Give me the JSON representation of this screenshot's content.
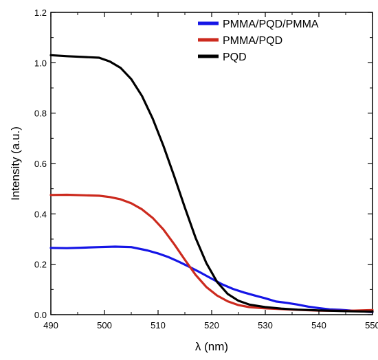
{
  "chart_data": {
    "type": "line",
    "title": "",
    "xlabel": "λ (nm)",
    "ylabel": "Intensity (a.u.)",
    "xlim": [
      490,
      550
    ],
    "ylim": [
      0,
      1.2
    ],
    "xticks": [
      490,
      500,
      510,
      520,
      530,
      540,
      550
    ],
    "yticks": [
      0.0,
      0.2,
      0.4,
      0.6,
      0.8,
      1.0,
      1.2
    ],
    "xtick_labels": [
      "490",
      "500",
      "510",
      "520",
      "530",
      "540",
      "550"
    ],
    "ytick_labels": [
      "0.0",
      "0.2",
      "0.4",
      "0.6",
      "0.8",
      "1.0",
      "1.2"
    ],
    "legend_position": "top-right",
    "series": [
      {
        "name": "PMMA/PQD/PMMA",
        "color": "#1515e6",
        "x": [
          490,
          493,
          496,
          499,
          502,
          505,
          508,
          510,
          512,
          514,
          516,
          518,
          520,
          522,
          524,
          526,
          528,
          530,
          532,
          534,
          536,
          538,
          540,
          542,
          544,
          546,
          548,
          550
        ],
        "y": [
          0.265,
          0.264,
          0.266,
          0.268,
          0.27,
          0.268,
          0.255,
          0.243,
          0.228,
          0.209,
          0.188,
          0.166,
          0.143,
          0.12,
          0.102,
          0.088,
          0.076,
          0.065,
          0.052,
          0.047,
          0.04,
          0.032,
          0.026,
          0.021,
          0.019,
          0.016,
          0.013,
          0.01
        ]
      },
      {
        "name": "PMMA/PQD",
        "color": "#cc2a1e",
        "x": [
          490,
          493,
          496,
          499,
          501,
          503,
          505,
          507,
          509,
          511,
          513,
          515,
          517,
          519,
          521,
          523,
          525,
          527,
          530,
          535,
          540,
          545,
          550
        ],
        "y": [
          0.475,
          0.476,
          0.474,
          0.472,
          0.467,
          0.458,
          0.442,
          0.418,
          0.384,
          0.338,
          0.28,
          0.218,
          0.158,
          0.11,
          0.076,
          0.053,
          0.038,
          0.03,
          0.025,
          0.02,
          0.016,
          0.015,
          0.018
        ]
      },
      {
        "name": "PQD",
        "color": "#000000",
        "x": [
          490,
          493,
          496,
          499,
          501,
          503,
          505,
          507,
          509,
          511,
          513,
          515,
          517,
          519,
          521,
          523,
          525,
          527,
          530,
          533,
          536,
          540,
          545,
          550
        ],
        "y": [
          1.03,
          1.026,
          1.023,
          1.02,
          1.005,
          0.98,
          0.935,
          0.868,
          0.778,
          0.67,
          0.55,
          0.425,
          0.305,
          0.205,
          0.13,
          0.082,
          0.055,
          0.04,
          0.03,
          0.024,
          0.02,
          0.017,
          0.014,
          0.012
        ]
      }
    ]
  }
}
